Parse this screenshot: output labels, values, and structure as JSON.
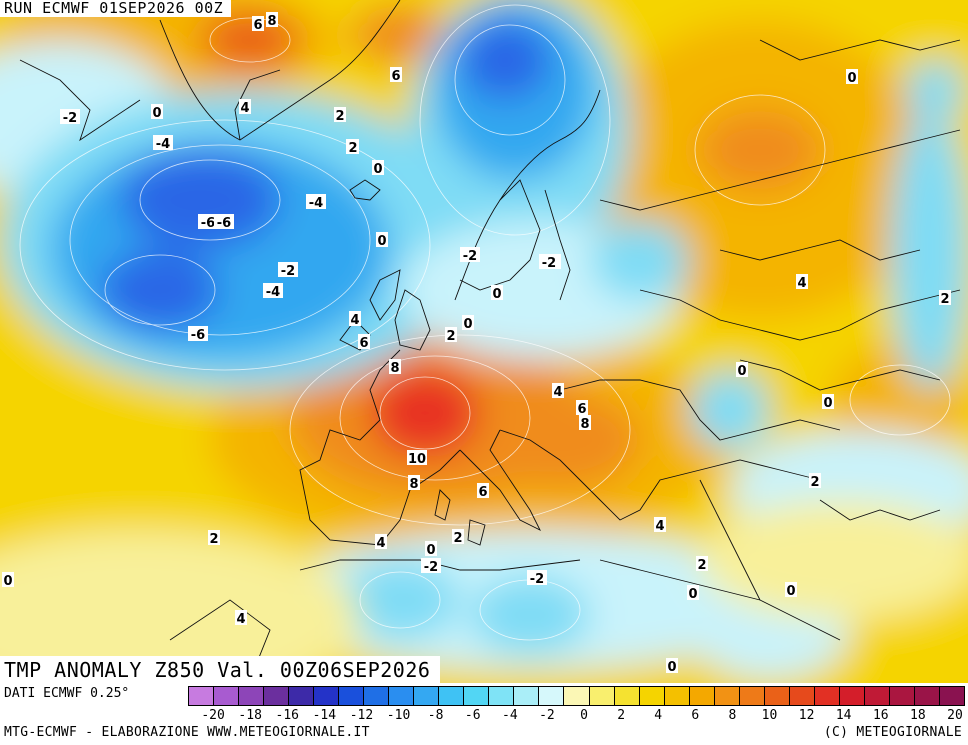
{
  "header": {
    "run_label": "RUN ECMWF 01SEP2026 00Z"
  },
  "map": {
    "title": "TMP ANOMALY Z850 Val. 00Z06SEP2026",
    "region": "Europe / North Atlantic",
    "palette": {
      "deep_blue": "#2a66e6",
      "blue": "#31a7f0",
      "light_blue": "#7fdcf5",
      "pale_cyan": "#c9f3fb",
      "pale_yellow": "#f8f09a",
      "yellow": "#f5d400",
      "dark_yellow": "#f4b400",
      "orange": "#f08c1a",
      "dark_orange": "#ea6118",
      "red": "#e83024"
    },
    "contour_labels": [
      "8",
      "6",
      "4",
      "2",
      "0",
      "-2",
      "-4",
      "-6",
      "2",
      "0",
      "-2",
      "-4",
      "-6",
      "6",
      "4",
      "2",
      "0",
      "-2",
      "-4",
      "-6",
      "0",
      "-2",
      "4",
      "6",
      "8",
      "2",
      "0",
      "4",
      "6",
      "8",
      "10",
      "8",
      "6",
      "4",
      "2",
      "0",
      "-2",
      "-2",
      "2",
      "0",
      "0",
      "4",
      "2",
      "0",
      "0",
      "2",
      "4",
      "0",
      "0",
      "2",
      "-2",
      "0",
      "4"
    ]
  },
  "footer": {
    "data_source": "DATI ECMWF 0.25°",
    "credits_left": "MTG-ECMWF - ELABORAZIONE WWW.METEOGIORNALE.IT",
    "credits_right": "(C) METEOGIORNALE",
    "colorbar": {
      "colors": [
        "#c77be0",
        "#a85bd0",
        "#8d45b8",
        "#6b2f9e",
        "#3d2aa8",
        "#2433c8",
        "#1a50dc",
        "#1f6fe6",
        "#2a8ef0",
        "#34a8f2",
        "#3fc2f4",
        "#52d6f4",
        "#7fe3f6",
        "#aaeef8",
        "#d6f8fb",
        "#fbf7b5",
        "#f9ef6e",
        "#f5e230",
        "#f5d400",
        "#f4c000",
        "#f4a800",
        "#f29214",
        "#ee7a18",
        "#ea6118",
        "#e64a1c",
        "#e23024",
        "#d41e2a",
        "#c01a36",
        "#aa1640",
        "#9a1448",
        "#8a1250"
      ],
      "tick_labels": [
        "-20",
        "-18",
        "-16",
        "-14",
        "-12",
        "-10",
        "-8",
        "-6",
        "-4",
        "-2",
        "0",
        "2",
        "4",
        "6",
        "8",
        "10",
        "12",
        "14",
        "16",
        "18",
        "20"
      ]
    }
  }
}
